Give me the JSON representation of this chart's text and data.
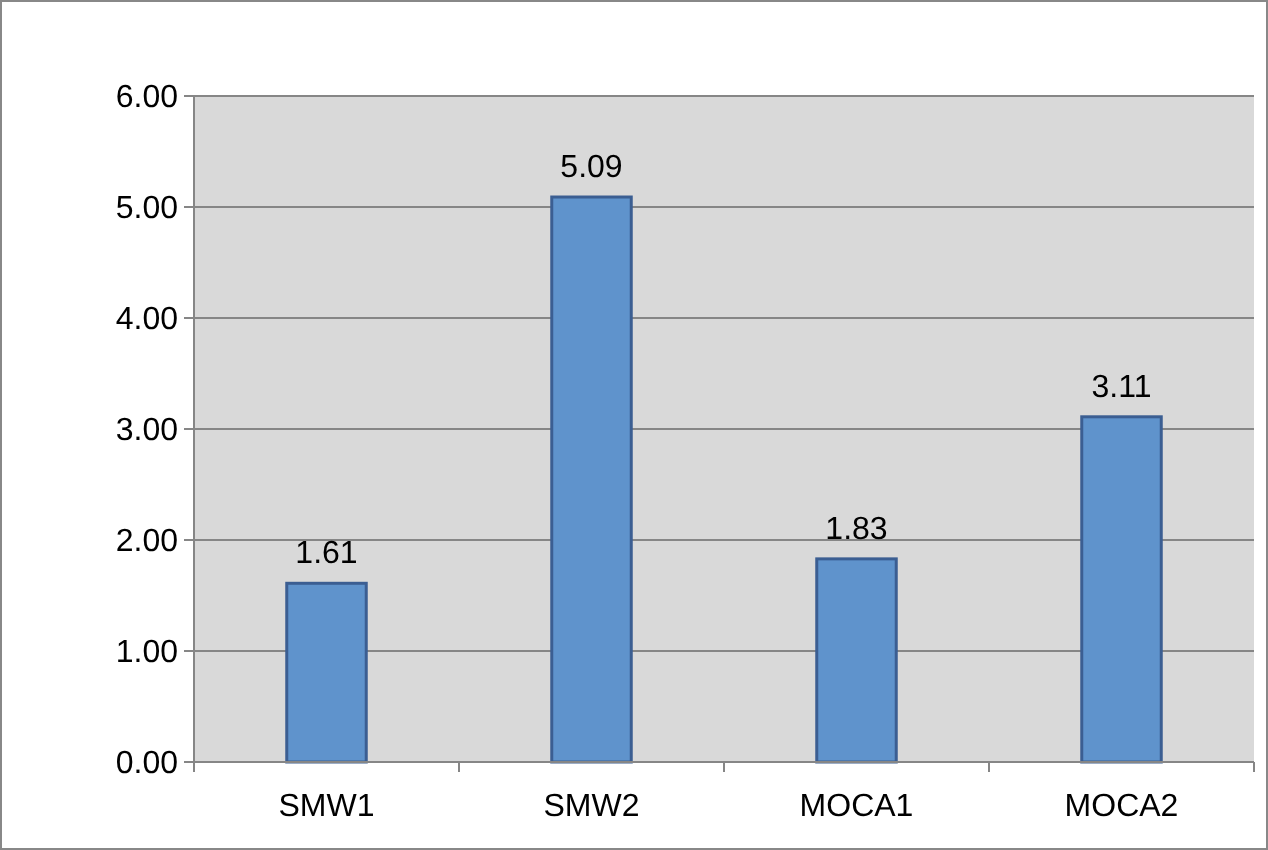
{
  "chart_data": {
    "type": "bar",
    "categories": [
      "SMW1",
      "SMW2",
      "MOCA1",
      "MOCA2"
    ],
    "values": [
      1.61,
      5.09,
      1.83,
      3.11
    ],
    "color": "#5f93cc",
    "data_labels": true,
    "grid": "y",
    "ylim": [
      0,
      6
    ],
    "yticks": [
      {
        "value": 0,
        "label": "0.00"
      },
      {
        "value": 1,
        "label": "1.00"
      },
      {
        "value": 2,
        "label": "2.00"
      },
      {
        "value": 3,
        "label": "3.00"
      },
      {
        "value": 4,
        "label": "4.00"
      },
      {
        "value": 5,
        "label": "5.00"
      },
      {
        "value": 6,
        "label": "6.00"
      }
    ]
  }
}
